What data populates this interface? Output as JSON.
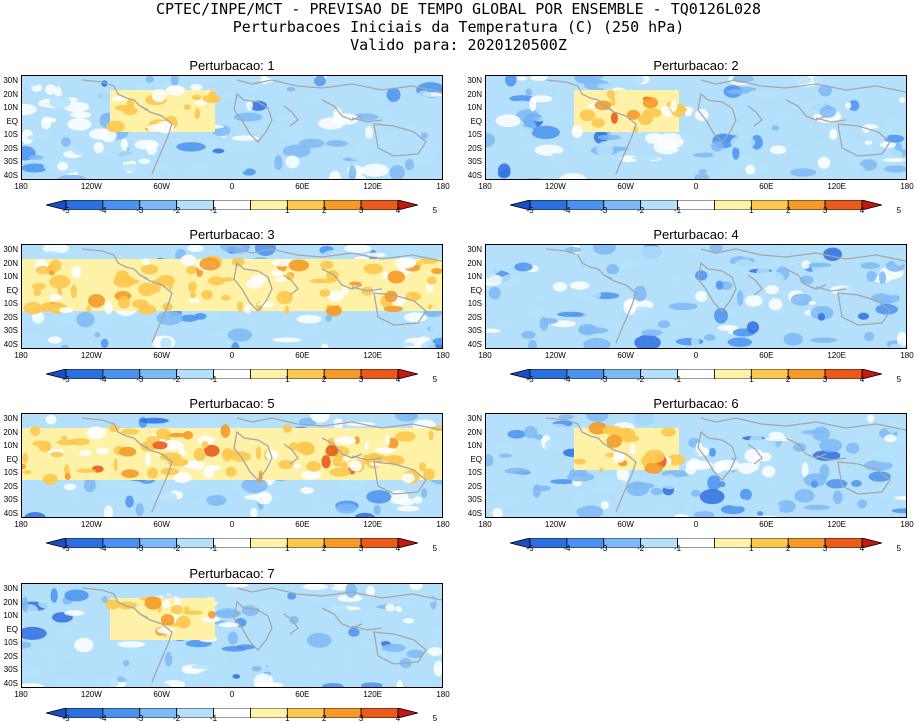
{
  "header": {
    "line1": "CPTEC/INPE/MCT - PREVISAO DE TEMPO GLOBAL POR ENSEMBLE - TQ0126L028",
    "line2": "Perturbacoes Iniciais da Temperatura (C) (250 hPa)",
    "line3": "Valido para: 2020120500Z"
  },
  "lat_labels": [
    "30N",
    "20N",
    "10N",
    "EQ",
    "10S",
    "20S",
    "30S",
    "40S"
  ],
  "lon_labels": [
    "180",
    "120W",
    "60W",
    "0",
    "60E",
    "120E",
    "180"
  ],
  "colorbar": {
    "ticks": [
      "-5",
      "-4",
      "-3",
      "-2",
      "-1",
      "1",
      "2",
      "3",
      "4",
      "5"
    ],
    "colors": [
      "#1c4fc4",
      "#2e6fe0",
      "#4a92ee",
      "#7db9f5",
      "#b4e0fb",
      "#ffffff",
      "#fff2a6",
      "#fbc850",
      "#f59a2a",
      "#ea5a1c",
      "#c21a12"
    ]
  },
  "panels": [
    {
      "title": "Perturbacao: 1",
      "warm": "box"
    },
    {
      "title": "Perturbacao: 2",
      "warm": "box"
    },
    {
      "title": "Perturbacao: 3",
      "warm": "band"
    },
    {
      "title": "Perturbacao: 4",
      "warm": "none"
    },
    {
      "title": "Perturbacao: 5",
      "warm": "band"
    },
    {
      "title": "Perturbacao: 6",
      "warm": "box"
    },
    {
      "title": "Perturbacao: 7",
      "warm": "box"
    }
  ]
}
